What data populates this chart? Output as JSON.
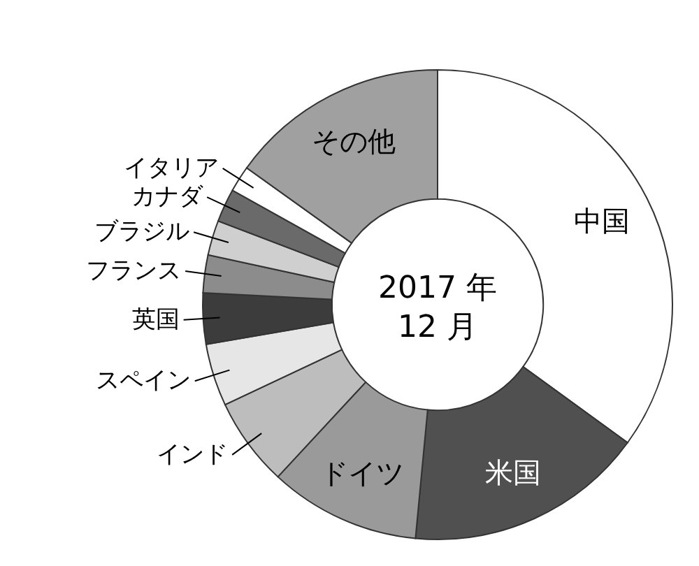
{
  "chart_data": {
    "type": "donut",
    "title": "2017 年\n12 月",
    "categories": [
      "中国",
      "米国",
      "ドイツ",
      "インド",
      "スペイン",
      "英国",
      "フランス",
      "ブラジル",
      "カナダ",
      "イタリア",
      "その他"
    ],
    "values": [
      35,
      16.5,
      10.4,
      6.1,
      4.3,
      3.5,
      2.6,
      2.4,
      2.3,
      1.8,
      15.1
    ],
    "colors": [
      "#ffffff",
      "#505050",
      "#9a9a9a",
      "#bdbdbd",
      "#e6e6e6",
      "#3c3c3c",
      "#8c8c8c",
      "#cfcfcf",
      "#6a6a6a",
      "#ffffff",
      "#a0a0a0"
    ],
    "legend": false
  }
}
